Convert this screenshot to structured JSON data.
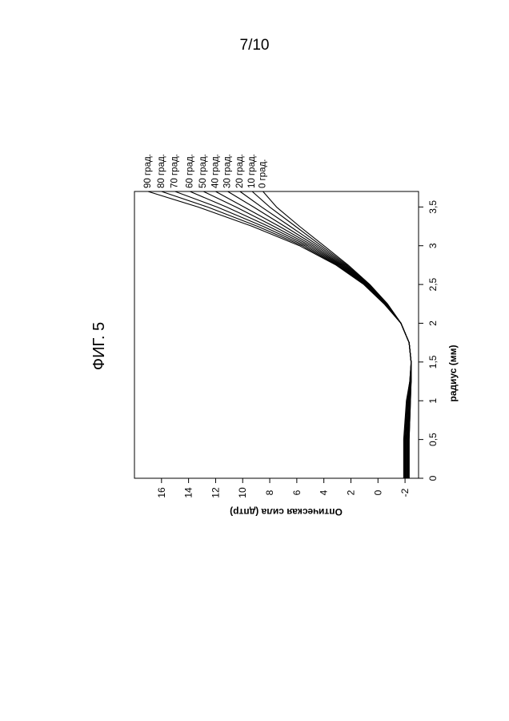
{
  "page_number": "7/10",
  "figure_label": "ФИГ. 5",
  "chart_data": {
    "type": "line",
    "orientation": "rotated-90-counterclockwise",
    "xlabel": "радиус (мм)",
    "ylabel": "Оптическая сила (дптр)",
    "xlim": [
      0,
      3.7
    ],
    "ylim": [
      -3,
      18
    ],
    "x_ticks": [
      {
        "value": 0,
        "label": "0"
      },
      {
        "value": 0.5,
        "label": "0,5"
      },
      {
        "value": 1,
        "label": "1"
      },
      {
        "value": 1.5,
        "label": "1,5"
      },
      {
        "value": 2,
        "label": "2"
      },
      {
        "value": 2.5,
        "label": "2,5"
      },
      {
        "value": 3,
        "label": "3"
      },
      {
        "value": 3.5,
        "label": "3,5"
      }
    ],
    "y_ticks": [
      {
        "value": -2,
        "label": "-2"
      },
      {
        "value": 0,
        "label": "0"
      },
      {
        "value": 2,
        "label": "2"
      },
      {
        "value": 4,
        "label": "4"
      },
      {
        "value": 6,
        "label": "6"
      },
      {
        "value": 8,
        "label": "8"
      },
      {
        "value": 10,
        "label": "10"
      },
      {
        "value": 12,
        "label": "12"
      },
      {
        "value": 14,
        "label": "14"
      },
      {
        "value": 16,
        "label": "16"
      }
    ],
    "x": [
      0,
      0.5,
      1,
      1.25,
      1.5,
      1.75,
      2,
      2.25,
      2.5,
      2.75,
      3,
      3.25,
      3.5,
      3.7
    ],
    "series": [
      {
        "name": "0 град.",
        "values": [
          -2.3,
          -2.3,
          -2.4,
          -2.45,
          -2.45,
          -2.3,
          -1.7,
          -0.7,
          0.6,
          2.2,
          4.0,
          5.8,
          7.5,
          8.5
        ]
      },
      {
        "name": "10 град.",
        "values": [
          -2.3,
          -2.3,
          -2.4,
          -2.45,
          -2.45,
          -2.3,
          -1.7,
          -0.7,
          0.65,
          2.3,
          4.2,
          6.1,
          8.0,
          9.3
        ]
      },
      {
        "name": "20 град.",
        "values": [
          -2.25,
          -2.25,
          -2.35,
          -2.45,
          -2.45,
          -2.3,
          -1.7,
          -0.65,
          0.7,
          2.4,
          4.4,
          6.5,
          8.6,
          10.2
        ]
      },
      {
        "name": "30 град.",
        "values": [
          -2.2,
          -2.2,
          -2.3,
          -2.45,
          -2.45,
          -2.3,
          -1.7,
          -0.6,
          0.75,
          2.5,
          4.6,
          6.9,
          9.2,
          11.1
        ]
      },
      {
        "name": "40 град.",
        "values": [
          -2.15,
          -2.15,
          -2.3,
          -2.4,
          -2.45,
          -2.3,
          -1.7,
          -0.6,
          0.8,
          2.6,
          4.8,
          7.3,
          9.9,
          12.0
        ]
      },
      {
        "name": "50 град.",
        "values": [
          -2.1,
          -2.1,
          -2.25,
          -2.4,
          -2.45,
          -2.3,
          -1.7,
          -0.55,
          0.85,
          2.7,
          5.0,
          7.7,
          10.5,
          12.9
        ]
      },
      {
        "name": "60 град.",
        "values": [
          -2.05,
          -2.05,
          -2.2,
          -2.4,
          -2.45,
          -2.3,
          -1.7,
          -0.55,
          0.9,
          2.8,
          5.2,
          8.1,
          11.2,
          13.9
        ]
      },
      {
        "name": "70 град.",
        "values": [
          -2.0,
          -2.0,
          -2.2,
          -2.4,
          -2.45,
          -2.3,
          -1.7,
          -0.5,
          0.95,
          2.9,
          5.4,
          8.5,
          11.9,
          15.0
        ]
      },
      {
        "name": "80 град.",
        "values": [
          -1.95,
          -1.95,
          -2.15,
          -2.35,
          -2.45,
          -2.3,
          -1.7,
          -0.5,
          1.0,
          3.0,
          5.6,
          8.9,
          12.6,
          16.0
        ]
      },
      {
        "name": "90 град.",
        "values": [
          -1.9,
          -1.9,
          -2.1,
          -2.35,
          -2.45,
          -2.3,
          -1.7,
          -0.45,
          1.05,
          3.1,
          5.8,
          9.3,
          13.3,
          17.0
        ]
      }
    ],
    "line_color": "#000000",
    "grid": false,
    "legend_placement": "curve-end labels"
  }
}
